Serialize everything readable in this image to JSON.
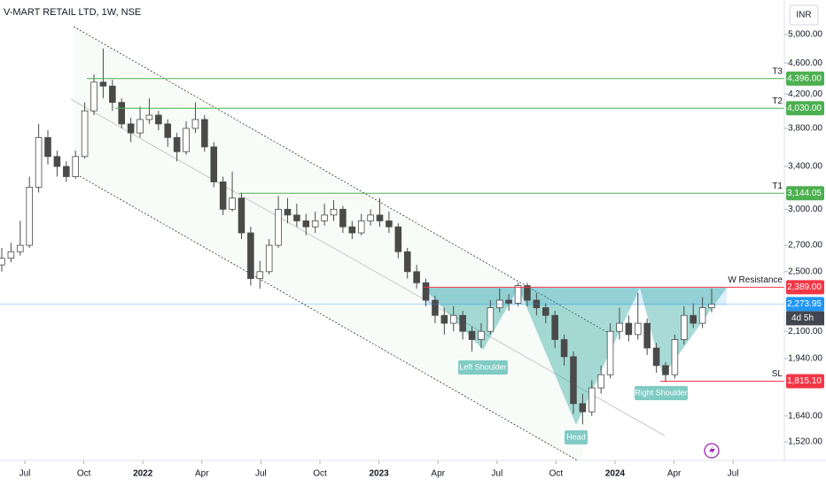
{
  "chart_data": {
    "type": "candlestick",
    "title": "V-MART RETAIL LTD, 1W, NSE",
    "currency": "INR",
    "log_scale": true,
    "up_color": "#ffffff",
    "down_color": "#4a4a4a",
    "open": [
      2550,
      2600,
      2650,
      2700,
      3200,
      3700,
      3500,
      3400,
      3300,
      3500,
      4000,
      4350,
      4300,
      4100,
      3850,
      3750,
      3900,
      3950,
      3850,
      3700,
      3550,
      3800,
      3900,
      3600,
      3250,
      3000,
      3100,
      2800,
      2450,
      2500,
      2700,
      3000,
      2950,
      2900,
      2850,
      2900,
      2950,
      3000,
      2850,
      2800,
      2900,
      2950,
      2900,
      2850,
      2650,
      2500,
      2420,
      2300,
      2200,
      2150,
      2200,
      2100,
      2050,
      2100,
      2250,
      2300,
      2280,
      2400,
      2300,
      2250,
      2200,
      2050,
      1950,
      1700,
      1660,
      1780,
      1850,
      2100,
      2150,
      2080,
      2150,
      2000,
      1900,
      1850,
      2050,
      2200,
      2150,
      2250
    ],
    "high": [
      2680,
      2720,
      2900,
      3300,
      3850,
      3780,
      3560,
      3450,
      3560,
      4100,
      4450,
      4800,
      4380,
      4150,
      3920,
      4050,
      4150,
      4000,
      3900,
      3750,
      3880,
      4100,
      3950,
      3650,
      3300,
      3350,
      3150,
      2850,
      2580,
      2750,
      3120,
      3100,
      3050,
      2960,
      2980,
      3050,
      3080,
      3030,
      2900,
      2960,
      3000,
      3100,
      2980,
      2880,
      2680,
      2550,
      2450,
      2330,
      2250,
      2260,
      2230,
      2130,
      2150,
      2300,
      2380,
      2340,
      2420,
      2420,
      2350,
      2280,
      2230,
      2080,
      1980,
      1750,
      1820,
      1900,
      2150,
      2250,
      2200,
      2350,
      2180,
      2030,
      1920,
      2080,
      2260,
      2280,
      2320,
      2380
    ],
    "low": [
      2500,
      2570,
      2620,
      2680,
      3150,
      3420,
      3300,
      3250,
      3280,
      3480,
      3950,
      4150,
      4000,
      3800,
      3650,
      3700,
      3850,
      3780,
      3600,
      3450,
      3520,
      3750,
      3550,
      3200,
      2950,
      2980,
      2750,
      2400,
      2380,
      2480,
      2680,
      2880,
      2850,
      2780,
      2800,
      2860,
      2900,
      2800,
      2750,
      2780,
      2860,
      2850,
      2800,
      2600,
      2450,
      2380,
      2260,
      2150,
      2080,
      2100,
      2050,
      1980,
      2000,
      2080,
      2220,
      2230,
      2260,
      2260,
      2200,
      2150,
      2000,
      1900,
      1650,
      1600,
      1640,
      1750,
      1830,
      2050,
      2040,
      2050,
      1960,
      1860,
      1810,
      1830,
      2020,
      2120,
      2120,
      2220
    ],
    "close": [
      2600,
      2650,
      2700,
      3200,
      3700,
      3500,
      3400,
      3300,
      3500,
      4000,
      4350,
      4300,
      4100,
      3850,
      3750,
      3900,
      3950,
      3850,
      3700,
      3550,
      3800,
      3900,
      3600,
      3250,
      3000,
      3100,
      2800,
      2450,
      2500,
      2700,
      3000,
      2950,
      2900,
      2850,
      2900,
      2950,
      3000,
      2850,
      2800,
      2900,
      2950,
      2900,
      2850,
      2650,
      2500,
      2420,
      2300,
      2200,
      2150,
      2200,
      2100,
      2050,
      2100,
      2250,
      2300,
      2280,
      2400,
      2300,
      2250,
      2200,
      2050,
      1950,
      1700,
      1660,
      1780,
      1850,
      2100,
      2150,
      2080,
      2150,
      2000,
      1900,
      1850,
      2050,
      2200,
      2150,
      2250,
      2273.95
    ],
    "ylim": [
      1440,
      5530
    ],
    "yticks": [
      {
        "value": 5000,
        "label": "5,000.00"
      },
      {
        "value": 4600,
        "label": "4,600.00"
      },
      {
        "value": 4200,
        "label": "4,200.00"
      },
      {
        "value": 3800,
        "label": "3,800.00"
      },
      {
        "value": 3400,
        "label": "3,400.00"
      },
      {
        "value": 3000,
        "label": "3,000.00"
      },
      {
        "value": 2700,
        "label": "2,700.00"
      },
      {
        "value": 2500,
        "label": "2,500.00"
      },
      {
        "value": 2100,
        "label": "2,100.00"
      },
      {
        "value": 1940,
        "label": "1,940.00"
      },
      {
        "value": 1640,
        "label": "1,640.00"
      },
      {
        "value": 1520,
        "label": "1,520.00"
      }
    ],
    "xlim": [
      "2021-05",
      "2024-09"
    ],
    "xticks": [
      {
        "value": "2021-07",
        "label": "Jul"
      },
      {
        "value": "2021-10",
        "label": "Oct"
      },
      {
        "value": "2022-01",
        "label": "2022"
      },
      {
        "value": "2022-04",
        "label": "Apr"
      },
      {
        "value": "2022-07",
        "label": "Jul"
      },
      {
        "value": "2022-10",
        "label": "Oct"
      },
      {
        "value": "2023-01",
        "label": "2023"
      },
      {
        "value": "2023-04",
        "label": "Apr"
      },
      {
        "value": "2023-07",
        "label": "Jul"
      },
      {
        "value": "2023-10",
        "label": "Oct"
      },
      {
        "value": "2024-01",
        "label": "2024"
      },
      {
        "value": "2024-04",
        "label": "Apr"
      },
      {
        "value": "2024-07",
        "label": "Jul"
      }
    ],
    "levels": [
      {
        "name": "T3",
        "value": 4396,
        "value_label": "4,396.00",
        "color": "#4caf50"
      },
      {
        "name": "T2",
        "value": 4030,
        "value_label": "4,030.00",
        "color": "#4caf50"
      },
      {
        "name": "T1",
        "value": 3144.05,
        "value_label": "3,144.05",
        "color": "#4caf50"
      },
      {
        "name": "W Resistance",
        "value": 2389,
        "value_label": "2,389.00",
        "color": "#f23645"
      },
      {
        "name": "SL",
        "value": 1815.1,
        "value_label": "1,815.10",
        "color": "#f23645"
      }
    ],
    "last_price": 2273.95,
    "last_price_label": "2,273.95",
    "countdown": "4d 5h",
    "annotations": [
      "Left Shoulder",
      "Head",
      "Right Shoulder"
    ]
  }
}
